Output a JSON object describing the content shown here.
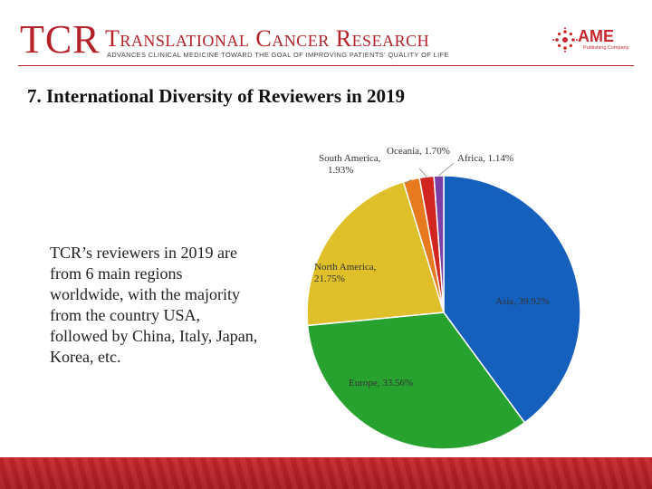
{
  "header": {
    "logo_abbrev": "TCR",
    "journal_name": "Translational Cancer Research",
    "tagline": "ADVANCES CLINICAL MEDICINE TOWARD THE GOAL OF IMPROVING PATIENTS' QUALITY OF LIFE",
    "publisher_name": "AME",
    "publisher_sub": "Publishing Company"
  },
  "slide": {
    "title": "7. International Diversity of Reviewers in 2019",
    "body": "TCR’s reviewers in 2019 are from 6 main regions worldwide, with the majority from the country USA, followed by China, Italy, Japan, Korea, etc."
  },
  "colors": {
    "brand_red": "#b22228",
    "footer_red": "#c8262c"
  },
  "chart_data": {
    "type": "pie",
    "title": "",
    "slices": [
      {
        "name": "Asia",
        "label": "Asia, 39.92%",
        "value": 39.92,
        "color": "#1560bd"
      },
      {
        "name": "Europe",
        "label": "Europe, 33.56%",
        "value": 33.56,
        "color": "#27a22f"
      },
      {
        "name": "North America",
        "label": "North America, 21.75%",
        "value": 21.75,
        "color": "#dfc02a"
      },
      {
        "name": "South America",
        "label": "South America, 1.93%",
        "value": 1.93,
        "color": "#e77a1e"
      },
      {
        "name": "Oceania",
        "label": "Oceania, 1.70%",
        "value": 1.7,
        "color": "#d1261f"
      },
      {
        "name": "Africa",
        "label": "Africa, 1.14%",
        "value": 1.14,
        "color": "#7b3fa6"
      }
    ],
    "start_angle_deg": 0,
    "direction": "clockwise",
    "legend": "none"
  }
}
